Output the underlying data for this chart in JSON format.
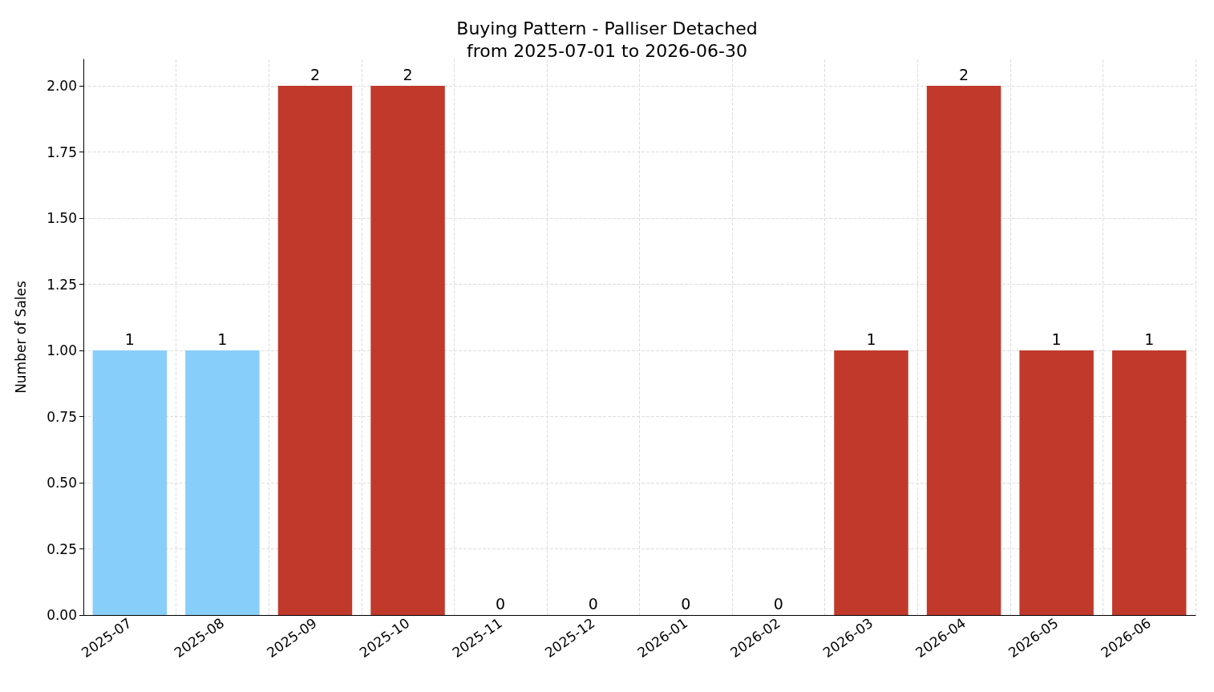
{
  "chart_data": {
    "type": "bar",
    "title": "Buying Pattern - Palliser Detached\nfrom 2025-07-01 to 2026-06-30",
    "ylabel": "Number of Sales",
    "categories": [
      "2025-07",
      "2025-08",
      "2025-09",
      "2025-10",
      "2025-11",
      "2025-12",
      "2026-01",
      "2026-02",
      "2026-03",
      "2026-04",
      "2026-05",
      "2026-06"
    ],
    "values": [
      1,
      1,
      2,
      2,
      0,
      0,
      0,
      0,
      1,
      2,
      1,
      1
    ],
    "colors": [
      "#87cefa",
      "#87cefa",
      "#c0392b",
      "#c0392b",
      "#c0392b",
      "#c0392b",
      "#c0392b",
      "#c0392b",
      "#c0392b",
      "#c0392b",
      "#c0392b",
      "#c0392b"
    ],
    "ylim": [
      0,
      2.1
    ],
    "yticks": [
      {
        "value": 0,
        "label": "0.00"
      },
      {
        "value": 0.25,
        "label": "0.25"
      },
      {
        "value": 0.5,
        "label": "0.50"
      },
      {
        "value": 0.75,
        "label": "0.75"
      },
      {
        "value": 1,
        "label": "1.00"
      },
      {
        "value": 1.25,
        "label": "1.25"
      },
      {
        "value": 1.5,
        "label": "1.50"
      },
      {
        "value": 1.75,
        "label": "1.75"
      },
      {
        "value": 2,
        "label": "2.00"
      }
    ],
    "grid": true,
    "data_labels": true
  }
}
